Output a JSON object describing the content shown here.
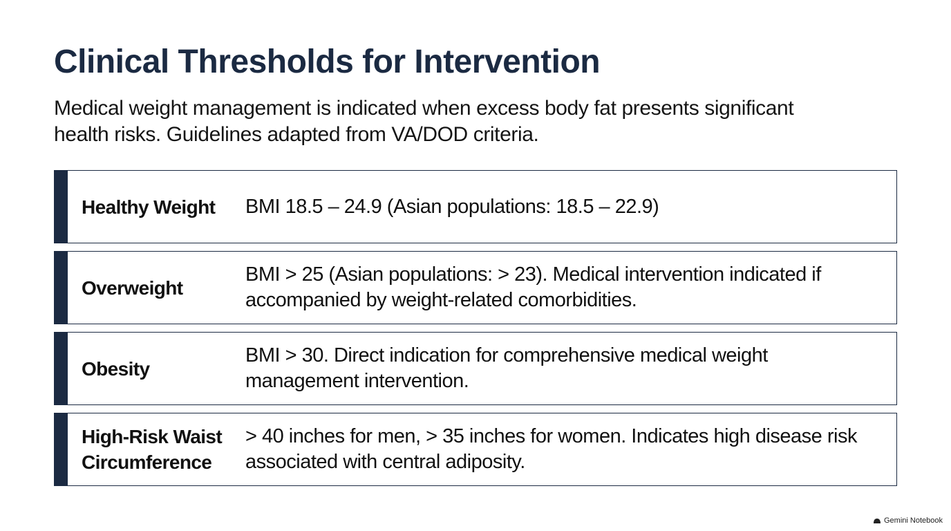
{
  "header": {
    "title": "Clinical Thresholds for Intervention",
    "subtitle": "Medical weight management is indicated when excess body fat presents significant health risks. Guidelines adapted from VA/DOD criteria."
  },
  "rows": [
    {
      "label": "Healthy Weight",
      "text": "BMI 18.5 – 24.9 (Asian populations: 18.5 – 22.9)"
    },
    {
      "label": "Overweight",
      "text": "BMI > 25 (Asian populations: > 23). Medical intervention indicated if accompanied by weight-related comorbidities."
    },
    {
      "label": "Obesity",
      "text": "BMI > 30. Direct indication for comprehensive medical weight management intervention."
    },
    {
      "label": "High-Risk Waist Circumference",
      "text": "> 40 inches for men, > 35 inches for women. Indicates high disease risk associated with central adiposity."
    }
  ],
  "footer": {
    "brand": "Gemini Notebook"
  }
}
